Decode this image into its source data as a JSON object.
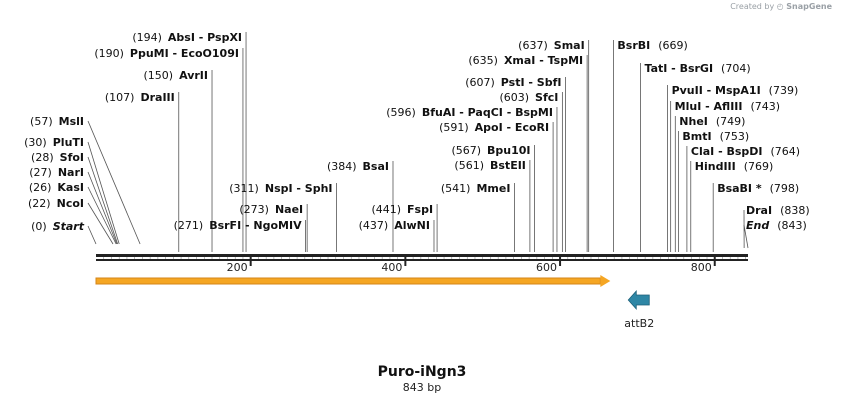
{
  "credit": {
    "prefix": "Created by",
    "brand": "SnapGene",
    "icon": "snapgene-logo-icon"
  },
  "plasmid": {
    "name": "Puro-iNgn3",
    "length_label": "843 bp"
  },
  "backbone": {
    "start": 0,
    "end": 843,
    "ticks": [
      {
        "pos": 200,
        "label": "200"
      },
      {
        "pos": 400,
        "label": "400"
      },
      {
        "pos": 600,
        "label": "600"
      },
      {
        "pos": 800,
        "label": "800"
      }
    ]
  },
  "features": [
    {
      "name": "orf-arrow",
      "start": 0,
      "end": 665,
      "color": "#f5a623",
      "direction": "forward"
    },
    {
      "name": "attB2",
      "label": "attB2",
      "pos": 705,
      "color": "#2e86a5",
      "direction": "reverse"
    }
  ],
  "sites": [
    {
      "name": "Start",
      "pos": 0,
      "sep": "",
      "pos_label": "(0)",
      "italic": true,
      "side": "left"
    },
    {
      "name": "NcoI",
      "pos": 22,
      "pos_label": "(22)",
      "side": "left"
    },
    {
      "name": "KasI",
      "pos": 26,
      "pos_label": "(26)",
      "side": "left"
    },
    {
      "name": "NarI",
      "pos": 27,
      "pos_label": "(27)",
      "side": "left"
    },
    {
      "name": "SfoI",
      "pos": 28,
      "pos_label": "(28)",
      "side": "left"
    },
    {
      "name": "PluTI",
      "pos": 30,
      "pos_label": "(30)",
      "side": "left"
    },
    {
      "name": "MslI",
      "pos": 57,
      "pos_label": "(57)",
      "side": "left"
    },
    {
      "name": "DraIII",
      "pos": 107,
      "pos_label": "(107)",
      "side": "left"
    },
    {
      "name": "AvrII",
      "pos": 150,
      "pos_label": "(150)",
      "side": "left"
    },
    {
      "name": "PpuMI - EcoO109I",
      "pos": 190,
      "pos_label": "(190)",
      "side": "left"
    },
    {
      "name": "AbsI - PspXI",
      "pos": 194,
      "pos_label": "(194)",
      "side": "left"
    },
    {
      "name": "BsrFI - NgoMIV",
      "pos": 271,
      "pos_label": "(271)",
      "side": "left"
    },
    {
      "name": "NaeI",
      "pos": 273,
      "pos_label": "(273)",
      "side": "left"
    },
    {
      "name": "NspI - SphI",
      "pos": 311,
      "pos_label": "(311)",
      "side": "left"
    },
    {
      "name": "BsaI",
      "pos": 384,
      "pos_label": "(384)",
      "side": "left"
    },
    {
      "name": "AlwNI",
      "pos": 437,
      "pos_label": "(437)",
      "side": "left"
    },
    {
      "name": "FspI",
      "pos": 441,
      "pos_label": "(441)",
      "side": "left"
    },
    {
      "name": "MmeI",
      "pos": 541,
      "pos_label": "(541)",
      "side": "left"
    },
    {
      "name": "BstEII",
      "pos": 561,
      "pos_label": "(561)",
      "side": "left"
    },
    {
      "name": "Bpu10I",
      "pos": 567,
      "pos_label": "(567)",
      "side": "left"
    },
    {
      "name": "ApoI - EcoRI",
      "pos": 591,
      "pos_label": "(591)",
      "side": "left"
    },
    {
      "name": "BfuAI - PaqCI - BspMI",
      "pos": 596,
      "pos_label": "(596)",
      "side": "left"
    },
    {
      "name": "SfcI",
      "pos": 603,
      "pos_label": "(603)",
      "side": "left"
    },
    {
      "name": "PstI - SbfI",
      "pos": 607,
      "pos_label": "(607)",
      "side": "left"
    },
    {
      "name": "XmaI - TspMI",
      "pos": 635,
      "pos_label": "(635)",
      "side": "left"
    },
    {
      "name": "SmaI",
      "pos": 637,
      "pos_label": "(637)",
      "side": "left"
    },
    {
      "name": "BsrBI",
      "pos": 669,
      "pos_label": "(669)",
      "side": "right"
    },
    {
      "name": "TatI - BsrGI",
      "pos": 704,
      "pos_label": "(704)",
      "side": "right"
    },
    {
      "name": "PvuII - MspA1I",
      "pos": 739,
      "pos_label": "(739)",
      "side": "right"
    },
    {
      "name": "MluI - AflIII",
      "pos": 743,
      "pos_label": "(743)",
      "side": "right"
    },
    {
      "name": "NheI",
      "pos": 749,
      "pos_label": "(749)",
      "side": "right"
    },
    {
      "name": "BmtI",
      "pos": 753,
      "pos_label": "(753)",
      "side": "right"
    },
    {
      "name": "ClaI - BspDI",
      "pos": 764,
      "pos_label": "(764)",
      "side": "right"
    },
    {
      "name": "HindIII",
      "pos": 769,
      "pos_label": "(769)",
      "side": "right"
    },
    {
      "name": "BsaBI *",
      "pos": 798,
      "pos_label": "(798)",
      "side": "right"
    },
    {
      "name": "DraI",
      "pos": 838,
      "pos_label": "(838)",
      "side": "right"
    },
    {
      "name": "End",
      "pos": 843,
      "pos_label": "(843)",
      "italic": true,
      "side": "right"
    }
  ]
}
